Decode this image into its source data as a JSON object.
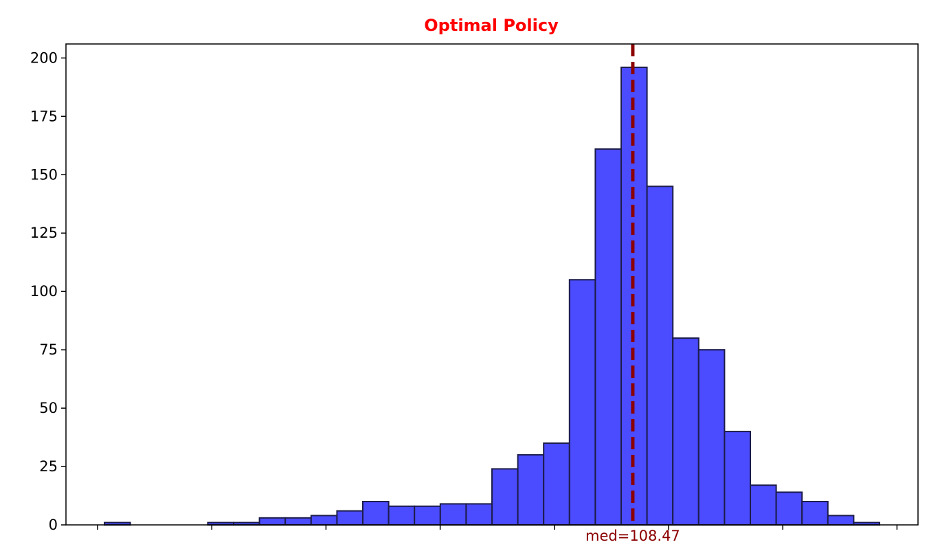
{
  "chart_data": {
    "type": "bar",
    "title": "Optimal Policy",
    "title_color": "#ff0000",
    "xlabel": "",
    "ylabel": "",
    "bar_color": "#4b4bff",
    "bar_edge_color": "#1c1c4a",
    "grid": false,
    "ylim": [
      0,
      206
    ],
    "yticks": [
      0,
      25,
      50,
      75,
      100,
      125,
      150,
      175,
      200
    ],
    "xticks_count": 8,
    "counts": [
      1,
      0,
      0,
      0,
      1,
      1,
      3,
      3,
      4,
      6,
      10,
      8,
      8,
      9,
      9,
      24,
      30,
      35,
      105,
      161,
      196,
      145,
      80,
      75,
      40,
      17,
      14,
      10,
      4,
      1
    ],
    "median": {
      "label": "med=108.47",
      "bin_position": 20.45,
      "color": "#8b0000",
      "style": "dashed"
    }
  }
}
